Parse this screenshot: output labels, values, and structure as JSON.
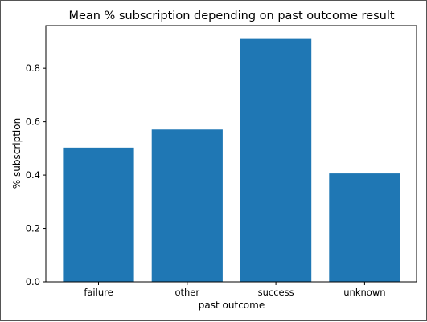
{
  "chart_data": {
    "type": "bar",
    "title": "Mean % subscription depending on past outcome result",
    "xlabel": "past outcome",
    "ylabel": "% subscription",
    "categories": [
      "failure",
      "other",
      "success",
      "unknown"
    ],
    "values": [
      0.503,
      0.571,
      0.913,
      0.406
    ],
    "ylim": [
      0,
      0.96
    ],
    "yticks": [
      0.0,
      0.2,
      0.4,
      0.6,
      0.8
    ],
    "ytick_labels": [
      "0.0",
      "0.2",
      "0.4",
      "0.6",
      "0.8"
    ],
    "grid": false,
    "bar_color": "#1f77b4"
  }
}
